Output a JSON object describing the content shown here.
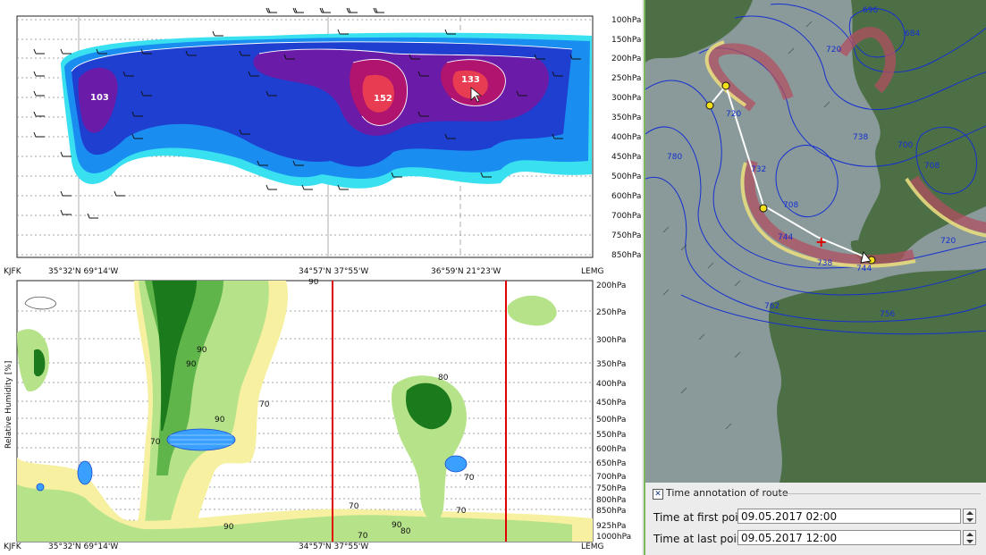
{
  "top_section": {
    "pressure_levels": [
      "100hPa",
      "150hPa",
      "200hPa",
      "250hPa",
      "300hPa",
      "350hPa",
      "400hPa",
      "450hPa",
      "500hPa",
      "600hPa",
      "700hPa",
      "750hPa",
      "850hPa"
    ],
    "contour_labels": [
      "103",
      "152",
      "133"
    ],
    "waypoints": [
      {
        "label": "KJFK"
      },
      {
        "label": "35°32'N 69°14'W"
      },
      {
        "label": "34°57'N 37°55'W"
      },
      {
        "label": "36°59'N 21°23'W"
      },
      {
        "label": "LEMG"
      }
    ]
  },
  "bottom_section": {
    "ylabel": "Relative Humidity [%]",
    "pressure_levels": [
      "200hPa",
      "250hPa",
      "300hPa",
      "350hPa",
      "400hPa",
      "450hPa",
      "500hPa",
      "550hPa",
      "600hPa",
      "650hPa",
      "700hPa",
      "750hPa",
      "800hPa",
      "850hPa",
      "925hPa",
      "1000hPa"
    ],
    "contour_labels": [
      "90",
      "90",
      "90",
      "90",
      "70",
      "70",
      "80",
      "70",
      "70",
      "70",
      "90",
      "80",
      "70",
      "90"
    ],
    "waypoints": [
      {
        "label": "KJFK"
      },
      {
        "label": "35°32'N 69°14'W"
      },
      {
        "label": "34°57'N 37°55'W"
      },
      {
        "label": "LEMG"
      }
    ]
  },
  "map": {
    "contour_labels": [
      "696",
      "684",
      "720",
      "720",
      "738",
      "708",
      "700",
      "732",
      "744",
      "738",
      "762",
      "756",
      "744",
      "780",
      "720",
      "708"
    ],
    "route_marker": "+"
  },
  "route_annotation": {
    "group_title": "Time annotation of route",
    "checked": true,
    "check_glyph": "✕",
    "first_label": "Time at first point",
    "first_value": "09.05.2017 02:00",
    "last_label": "Time at last point",
    "last_value": "09.05.2017 12:00"
  },
  "colors": {
    "accent": "#1a3c8a",
    "route": "#ffffff",
    "divider": "#7ab85a",
    "redline": "#e00000"
  }
}
